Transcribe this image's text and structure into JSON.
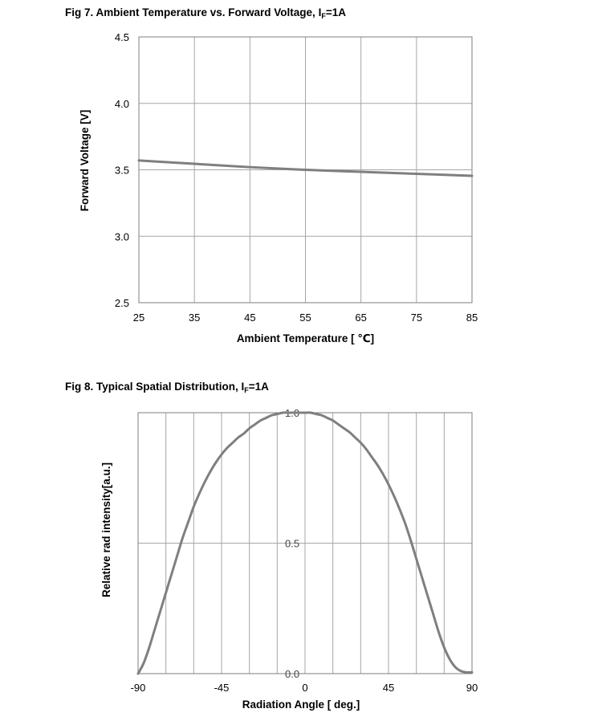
{
  "colors": {
    "grid": "#a6a6a6",
    "frame": "#7f7f7f",
    "curve": "#7f7f7f",
    "text": "#000000"
  },
  "chart_data": [
    {
      "type": "line",
      "title_main": "Fig 7. Ambient Temperature vs. Forward Voltage, I",
      "title_sub": "F",
      "title_tail": "=1A",
      "xlabel": "Ambient Temperature [ ℃]",
      "ylabel": "Forward Voltage [V]",
      "xlim": [
        25,
        85
      ],
      "ylim": [
        2.5,
        4.5
      ],
      "xticks": [
        25,
        35,
        45,
        55,
        65,
        75,
        85
      ],
      "yticks": [
        2.5,
        3.0,
        3.5,
        4.0,
        4.5
      ],
      "xtick_labels": [
        "25",
        "35",
        "45",
        "55",
        "65",
        "75",
        "85"
      ],
      "ytick_labels": [
        "2.5",
        "3.0",
        "3.5",
        "4.0",
        "4.5"
      ],
      "grid": true,
      "series": [
        {
          "x": [
            25,
            35,
            45,
            55,
            65,
            75,
            85
          ],
          "y": [
            3.57,
            3.545,
            3.52,
            3.5,
            3.485,
            3.47,
            3.455
          ]
        }
      ]
    },
    {
      "type": "line",
      "title_main": "Fig 8. Typical Spatial Distribution, I",
      "title_sub": "F",
      "title_tail": "=1A",
      "xlabel": "Radiation Angle  [ deg.]",
      "ylabel": "Relative rad intensity[a.u.]",
      "xlim": [
        -90,
        90
      ],
      "ylim": [
        0,
        1
      ],
      "xticks": [
        -90,
        -45,
        0,
        45,
        90
      ],
      "yticks": [
        0,
        0.5,
        1.0
      ],
      "xtick_labels": [
        "-90",
        "-45",
        "0",
        "45",
        "90"
      ],
      "ytick_labels": [
        "0.0",
        "0.5",
        "1.0"
      ],
      "x_gridlines": [
        -90,
        -75,
        -60,
        -45,
        -30,
        -15,
        0,
        15,
        30,
        45,
        60,
        75,
        90
      ],
      "grid": true,
      "series": [
        {
          "x": [
            -90,
            -87,
            -84,
            -81,
            -78,
            -75,
            -72,
            -69,
            -66,
            -63,
            -60,
            -57,
            -54,
            -51,
            -48,
            -45,
            -42,
            -39,
            -36,
            -33,
            -30,
            -27,
            -24,
            -21,
            -18,
            -15,
            -12,
            -9,
            -6,
            -3,
            0,
            3,
            6,
            9,
            12,
            15,
            18,
            21,
            24,
            27,
            30,
            33,
            36,
            39,
            42,
            45,
            48,
            51,
            54,
            57,
            60,
            63,
            66,
            69,
            72,
            75,
            78,
            81,
            84,
            87,
            90
          ],
          "y": [
            0.0,
            0.04,
            0.1,
            0.17,
            0.24,
            0.31,
            0.38,
            0.45,
            0.52,
            0.58,
            0.64,
            0.69,
            0.735,
            0.775,
            0.81,
            0.84,
            0.865,
            0.885,
            0.905,
            0.92,
            0.94,
            0.955,
            0.97,
            0.98,
            0.99,
            0.995,
            1.0,
            1.0,
            1.0,
            1.0,
            1.0,
            1.0,
            0.995,
            0.99,
            0.98,
            0.97,
            0.955,
            0.94,
            0.925,
            0.905,
            0.885,
            0.86,
            0.83,
            0.8,
            0.765,
            0.725,
            0.68,
            0.63,
            0.575,
            0.51,
            0.44,
            0.37,
            0.3,
            0.23,
            0.16,
            0.1,
            0.055,
            0.025,
            0.01,
            0.005,
            0.005
          ]
        }
      ]
    }
  ]
}
